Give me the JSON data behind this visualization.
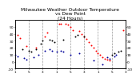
{
  "title": "Milwaukee Weather Outdoor Temperature\nvs Dew Point\n(24 Hours)",
  "title_fontsize": 4.2,
  "bg_color": "#ffffff",
  "plot_bg_color": "#ffffff",
  "grid_color": "#999999",
  "temp_color": "#ff0000",
  "dew_color": "#000099",
  "black_color": "#000000",
  "marker_size": 2.0,
  "ylim": [
    -10,
    60
  ],
  "xlim": [
    0,
    48
  ],
  "yticks": [
    -10,
    0,
    10,
    20,
    30,
    40,
    50
  ],
  "ytick_fontsize": 3.2,
  "xtick_fontsize": 3.0,
  "temp_x": [
    1,
    2,
    5,
    9,
    13,
    14,
    19,
    20,
    22,
    23,
    24,
    25,
    28,
    29,
    30,
    31,
    32,
    33,
    34,
    35,
    36,
    37,
    38,
    39,
    40,
    41,
    47
  ],
  "temp_y": [
    38,
    34,
    22,
    20,
    36,
    42,
    55,
    55,
    55,
    53,
    50,
    46,
    44,
    40,
    36,
    33,
    28,
    24,
    20,
    16,
    12,
    10,
    6,
    4,
    3,
    2,
    45
  ],
  "dew_x": [
    0,
    1,
    4,
    5,
    8,
    10,
    13,
    15,
    16,
    18,
    20,
    21,
    24,
    28,
    34,
    38,
    40,
    41,
    43,
    44
  ],
  "dew_y": [
    10,
    8,
    5,
    3,
    6,
    10,
    16,
    18,
    16,
    14,
    16,
    14,
    10,
    12,
    2,
    -4,
    6,
    4,
    8,
    10
  ],
  "black_x": [
    3,
    6,
    7,
    9,
    11,
    12,
    15,
    16,
    17,
    21,
    26,
    27,
    30,
    42,
    43,
    45,
    46
  ],
  "black_y": [
    18,
    16,
    14,
    18,
    26,
    30,
    32,
    30,
    28,
    32,
    36,
    38,
    36,
    10,
    12,
    14,
    16
  ],
  "vgrid_positions": [
    6,
    12,
    18,
    24,
    30,
    36,
    42
  ],
  "xtick_positions": [
    1,
    5,
    3,
    1,
    5,
    3,
    1,
    5,
    3
  ],
  "xtick_x": [
    0,
    6,
    12,
    18,
    24,
    30,
    36,
    42,
    48
  ],
  "ylabel_right_labels": [
    "50",
    "40",
    "30",
    "20",
    "10",
    "0",
    "-10"
  ],
  "ylabel_right_y": [
    50,
    40,
    30,
    20,
    10,
    0,
    -10
  ]
}
